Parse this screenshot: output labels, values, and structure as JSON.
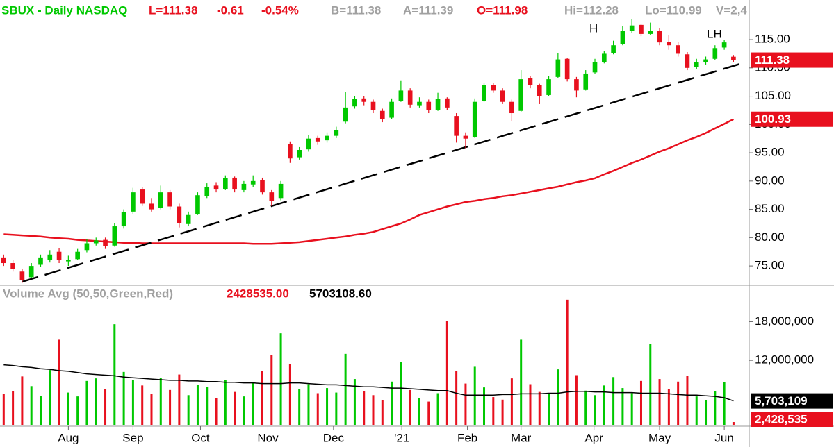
{
  "chart_data": {
    "type": "candlestick",
    "header": [
      {
        "text": "SBUX - Daily  NASDAQ",
        "color": "#00c800"
      },
      {
        "text": "L=111.38",
        "color": "#e8101e"
      },
      {
        "text": "-0.61",
        "color": "#e8101e"
      },
      {
        "text": "-0.54%",
        "color": "#e8101e"
      },
      {
        "text": "B=111.38",
        "color": "#a0a0a0"
      },
      {
        "text": "A=111.39",
        "color": "#a0a0a0"
      },
      {
        "text": "O=111.98",
        "color": "#e8101e"
      },
      {
        "text": "Hi=112.28",
        "color": "#a0a0a0"
      },
      {
        "text": "Lo=110.99",
        "color": "#a0a0a0"
      },
      {
        "text": "V=2,4",
        "color": "#a0a0a0"
      }
    ],
    "annotations": [
      "H",
      "LH"
    ],
    "xlim": [
      -0.4,
      80.7
    ],
    "xticks": [
      {
        "value": 7,
        "label": "Aug"
      },
      {
        "value": 14,
        "label": "Sep"
      },
      {
        "value": 21.3,
        "label": "Oct"
      },
      {
        "value": 28.6,
        "label": "Nov"
      },
      {
        "value": 35.7,
        "label": "Dec"
      },
      {
        "value": 43.1,
        "label": "'21"
      },
      {
        "value": 50.2,
        "label": "Feb"
      },
      {
        "value": 56,
        "label": "Mar"
      },
      {
        "value": 63.9,
        "label": "Apr"
      },
      {
        "value": 71,
        "label": "May"
      },
      {
        "value": 78,
        "label": "Jun"
      }
    ],
    "ylim": [
      71.7,
      122
    ],
    "yticks": [
      {
        "value": 75,
        "label": "75.00"
      },
      {
        "value": 80,
        "label": "80.00"
      },
      {
        "value": 85,
        "label": "85.00"
      },
      {
        "value": 90,
        "label": "90.00"
      },
      {
        "value": 95,
        "label": "95.00"
      },
      {
        "value": 100,
        "label": "100.00"
      },
      {
        "value": 105,
        "label": "105.00"
      },
      {
        "value": 110,
        "label": "110.00"
      },
      {
        "value": 115,
        "label": "115.00"
      }
    ],
    "up_color": "#00c800",
    "down_color": "#e8101e",
    "ohlc": [
      [
        76.5,
        77,
        75,
        75.5
      ],
      [
        75.5,
        76,
        74,
        74.5
      ],
      [
        74,
        74.5,
        72,
        72.5
      ],
      [
        73,
        75.5,
        72.8,
        75
      ],
      [
        75.2,
        77,
        74.8,
        76.5
      ],
      [
        76,
        77.8,
        75.6,
        77
      ],
      [
        77.5,
        78.2,
        75.5,
        76
      ],
      [
        75.8,
        76.8,
        75,
        76
      ],
      [
        76.2,
        78,
        76,
        77.5
      ],
      [
        77.8,
        79.8,
        77.4,
        79
      ],
      [
        79,
        80,
        78.6,
        79.5
      ],
      [
        79.6,
        80,
        78,
        78.5
      ],
      [
        78.6,
        82.5,
        78.4,
        82
      ],
      [
        82,
        85,
        81.6,
        84.5
      ],
      [
        84.6,
        88.8,
        84.2,
        88
      ],
      [
        88.5,
        89,
        85.6,
        86
      ],
      [
        86,
        87,
        84.6,
        85
      ],
      [
        85.2,
        89.2,
        85,
        88
      ],
      [
        88,
        88.4,
        85,
        85.5
      ],
      [
        85.5,
        86,
        81.8,
        82.5
      ],
      [
        82.4,
        84.6,
        82,
        84
      ],
      [
        84.2,
        88,
        84,
        87.5
      ],
      [
        87.4,
        89.6,
        87,
        89
      ],
      [
        89.2,
        89.8,
        88,
        88.5
      ],
      [
        88.6,
        91,
        88.4,
        90.5
      ],
      [
        90.6,
        90.8,
        88,
        88.5
      ],
      [
        88.4,
        90,
        88,
        89.5
      ],
      [
        89.4,
        91,
        89,
        90
      ],
      [
        90.2,
        90.6,
        87.6,
        88
      ],
      [
        88,
        88.4,
        85.6,
        86.5
      ],
      [
        87,
        90,
        86.6,
        89.5
      ],
      [
        96.5,
        97,
        93.2,
        94
      ],
      [
        94.2,
        96,
        93.8,
        95.5
      ],
      [
        95.6,
        98.2,
        95.2,
        97.5
      ],
      [
        97.6,
        98,
        96.4,
        97
      ],
      [
        97.2,
        98.6,
        96.8,
        98
      ],
      [
        98,
        99.6,
        97.6,
        99
      ],
      [
        100.5,
        105.8,
        100.2,
        103
      ],
      [
        103.2,
        105,
        102.8,
        104.5
      ],
      [
        104.6,
        105,
        103.4,
        104
      ],
      [
        104,
        104.4,
        102,
        102.5
      ],
      [
        102.4,
        102.8,
        100.4,
        101
      ],
      [
        101.2,
        104.6,
        101,
        104
      ],
      [
        104.2,
        107.8,
        104,
        106
      ],
      [
        106,
        106.4,
        103,
        103.5
      ],
      [
        103.4,
        104.8,
        103,
        104
      ],
      [
        104,
        104.4,
        102,
        102.5
      ],
      [
        102.6,
        105.6,
        102.4,
        104.5
      ],
      [
        104.6,
        104.8,
        102.6,
        103
      ],
      [
        101.5,
        102,
        96.8,
        98
      ],
      [
        98,
        98.6,
        95.8,
        97.5
      ],
      [
        97.8,
        104.6,
        97.6,
        104
      ],
      [
        104.2,
        107.4,
        104,
        107
      ],
      [
        107,
        107.4,
        105.6,
        106
      ],
      [
        106,
        106.4,
        103.6,
        104
      ],
      [
        104,
        104.4,
        100.6,
        102
      ],
      [
        102.4,
        109.6,
        102.2,
        108
      ],
      [
        108.2,
        108.6,
        106.4,
        107
      ],
      [
        107,
        107.2,
        103.6,
        105
      ],
      [
        105.2,
        108.6,
        105,
        108
      ],
      [
        108.4,
        112.6,
        108.2,
        111.5
      ],
      [
        111.6,
        111.8,
        107.6,
        108
      ],
      [
        108,
        108.4,
        104.8,
        106
      ],
      [
        106.2,
        109.6,
        106,
        109
      ],
      [
        109.2,
        111.6,
        109,
        111
      ],
      [
        111,
        113,
        110.8,
        112.5
      ],
      [
        112.6,
        114.8,
        112.4,
        114
      ],
      [
        114.2,
        117.4,
        114,
        116.5
      ],
      [
        116.6,
        118.6,
        116.2,
        117.5
      ],
      [
        117.6,
        117.8,
        115.6,
        116
      ],
      [
        116,
        118,
        115.8,
        116.5
      ],
      [
        116.6,
        117,
        114,
        114.5
      ],
      [
        114.6,
        115.8,
        113.2,
        114
      ],
      [
        114,
        114.6,
        112,
        112.5
      ],
      [
        112.4,
        112.8,
        109.6,
        110
      ],
      [
        110.2,
        111.6,
        109.8,
        111
      ],
      [
        111,
        112,
        110.6,
        111.5
      ],
      [
        111.6,
        114,
        111.4,
        113.5
      ],
      [
        113.6,
        115,
        113.2,
        114.5
      ],
      [
        111.98,
        112.28,
        110.99,
        111.38
      ]
    ],
    "series": [
      {
        "color": "#e8101e",
        "values": [
          80.6,
          80.5,
          80.4,
          80.3,
          80.2,
          80.0,
          79.9,
          79.8,
          79.6,
          79.5,
          79.4,
          79.3,
          79.2,
          79.1,
          79.1,
          79.0,
          79.0,
          79.0,
          79.0,
          79.0,
          79.0,
          79.0,
          79.0,
          79.0,
          79.0,
          79.0,
          79.0,
          78.9,
          78.9,
          78.9,
          79.0,
          79.1,
          79.2,
          79.4,
          79.6,
          79.8,
          80.0,
          80.2,
          80.5,
          80.7,
          81.0,
          81.5,
          82.0,
          82.5,
          83.2,
          84.0,
          84.5,
          85.0,
          85.5,
          85.9,
          86.3,
          86.5,
          86.8,
          87.0,
          87.3,
          87.5,
          87.8,
          88.1,
          88.4,
          88.7,
          89.0,
          89.4,
          89.8,
          90.1,
          90.5,
          91.2,
          91.8,
          92.5,
          93.2,
          93.8,
          94.5,
          95.2,
          95.8,
          96.5,
          97.2,
          97.8,
          98.5,
          99.3,
          100.1,
          100.93
        ]
      }
    ],
    "trendline": {
      "x": [
        2,
        80.3
      ],
      "y": [
        72.2,
        111.0
      ],
      "color": "#000000"
    },
    "price_tags": [
      {
        "value": 111.38,
        "color": "#e8101e"
      },
      {
        "value": 100.93,
        "color": "#e8101e"
      }
    ],
    "volume": {
      "label": "Volume Avg (50,50,Green,Red)",
      "readouts": [
        {
          "text": "2428535.00",
          "color": "#e8101e"
        },
        {
          "text": "5703108.60",
          "color": "#000000"
        }
      ],
      "ylim": [
        2000000,
        23000000
      ],
      "yticks": [
        {
          "value": 12000000,
          "label": "12,000,000"
        },
        {
          "value": 18000000,
          "label": "18,000,000"
        }
      ],
      "values": [
        6800000,
        7200000,
        9500000,
        8000000,
        6500000,
        10500000,
        15200000,
        7000000,
        6400000,
        8800000,
        9200000,
        7600000,
        17600000,
        10200000,
        9000000,
        8100000,
        6800000,
        9300000,
        7400000,
        9800000,
        6600000,
        8200000,
        7900000,
        6100000,
        9000000,
        7100000,
        6400000,
        8500000,
        10300000,
        12800000,
        16200000,
        11400000,
        7500000,
        8300000,
        6900000,
        7700000,
        7000000,
        13000000,
        9100000,
        7200000,
        6600000,
        5800000,
        8700000,
        11800000,
        7400000,
        6200000,
        5600000,
        6900000,
        18100000,
        10300000,
        8400000,
        11000000,
        7800000,
        6300000,
        5900000,
        9200000,
        15200000,
        8300000,
        7100000,
        6800000,
        10600000,
        21400000,
        9700000,
        7300000,
        6600000,
        8100000,
        9400000,
        7700000,
        6900000,
        8800000,
        14600000,
        9100000,
        7500000,
        8700000,
        9600000,
        6400000,
        5800000,
        7200000,
        8600000,
        2428535
      ],
      "avg_color": "#000000",
      "avg": [
        11300000,
        11200000,
        11000000,
        10900000,
        10700000,
        10600000,
        10400000,
        10300000,
        10100000,
        9900000,
        9800000,
        9700000,
        9600000,
        9400000,
        9300000,
        9200000,
        9100000,
        9000000,
        8900000,
        8900000,
        8800000,
        8800000,
        8700000,
        8700000,
        8600000,
        8600000,
        8500000,
        8500000,
        8400000,
        8400000,
        8400000,
        8500000,
        8500000,
        8400000,
        8300000,
        8200000,
        8200000,
        8100000,
        8000000,
        7900000,
        7900000,
        7800000,
        7700000,
        7700000,
        7600000,
        7500000,
        7400000,
        7300000,
        7300000,
        6900000,
        6600000,
        6600000,
        6600000,
        6600000,
        6700000,
        6700000,
        6800000,
        6800000,
        6800000,
        6900000,
        6900000,
        7100000,
        7200000,
        7200000,
        7100000,
        7100000,
        7000000,
        7000000,
        7000000,
        6900000,
        6900000,
        6900000,
        6800000,
        6700000,
        6600000,
        6600000,
        6500000,
        6400000,
        6200000,
        5703109
      ],
      "tags": [
        {
          "value": 5703109,
          "label": "5,703,109",
          "color": "#000000"
        },
        {
          "value": 2428535,
          "label": "2,428,535",
          "color": "#e8101e"
        }
      ]
    }
  }
}
